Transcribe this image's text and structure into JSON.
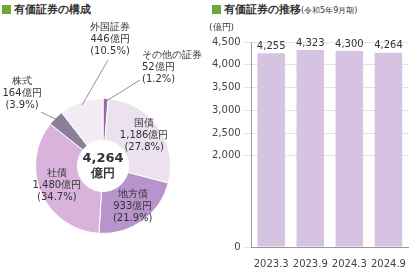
{
  "chart_data": [
    {
      "type": "doughnut",
      "title": "有価証券の構成",
      "annotations": [
        "4,264",
        "億円"
      ],
      "categories": [
        "その他の証券",
        "国債",
        "地方債",
        "社債",
        "株式",
        "外国証券"
      ],
      "values": [
        52,
        1186,
        933,
        1480,
        164,
        446
      ],
      "value_labels": [
        "52億円",
        "1,186億円",
        "933億円",
        "1,480億円",
        "164億円",
        "446億円"
      ],
      "percentages": [
        1.2,
        27.8,
        21.9,
        34.7,
        3.9,
        10.5
      ],
      "percentage_labels": [
        "(1.2%)",
        "(27.8%)",
        "(21.9%)",
        "(34.7%)",
        "(3.9%)",
        "(10.5%)"
      ],
      "colors": [
        "#9a6aae",
        "#ece2ef",
        "#b993cc",
        "#d9b3db",
        "#8d7f9a",
        "#f2edf4"
      ],
      "data_labels": true
    },
    {
      "type": "bar",
      "title": "有価証券の推移",
      "subtitle": "(令和5年9月期)",
      "ylabel": "(億円)",
      "categories": [
        "2023.3",
        "2023.9",
        "2024.3",
        "2024.9"
      ],
      "values": [
        4255,
        4323,
        4300,
        4264
      ],
      "value_labels": [
        "4,255",
        "4,323",
        "4,300",
        "4,264"
      ],
      "color": "#d6c3e2",
      "ylim": [
        0,
        4500
      ],
      "yticks": [
        0,
        {
          "value": 2000,
          "label": "2,000"
        },
        {
          "value": 2500,
          "label": "2,500"
        },
        {
          "value": 3000,
          "label": "3,000"
        },
        {
          "value": 3500,
          "label": "3,500"
        },
        {
          "value": 4000,
          "label": "4,000"
        },
        {
          "value": 4500,
          "label": "4,500"
        }
      ],
      "grid": true,
      "data_labels": true
    }
  ]
}
